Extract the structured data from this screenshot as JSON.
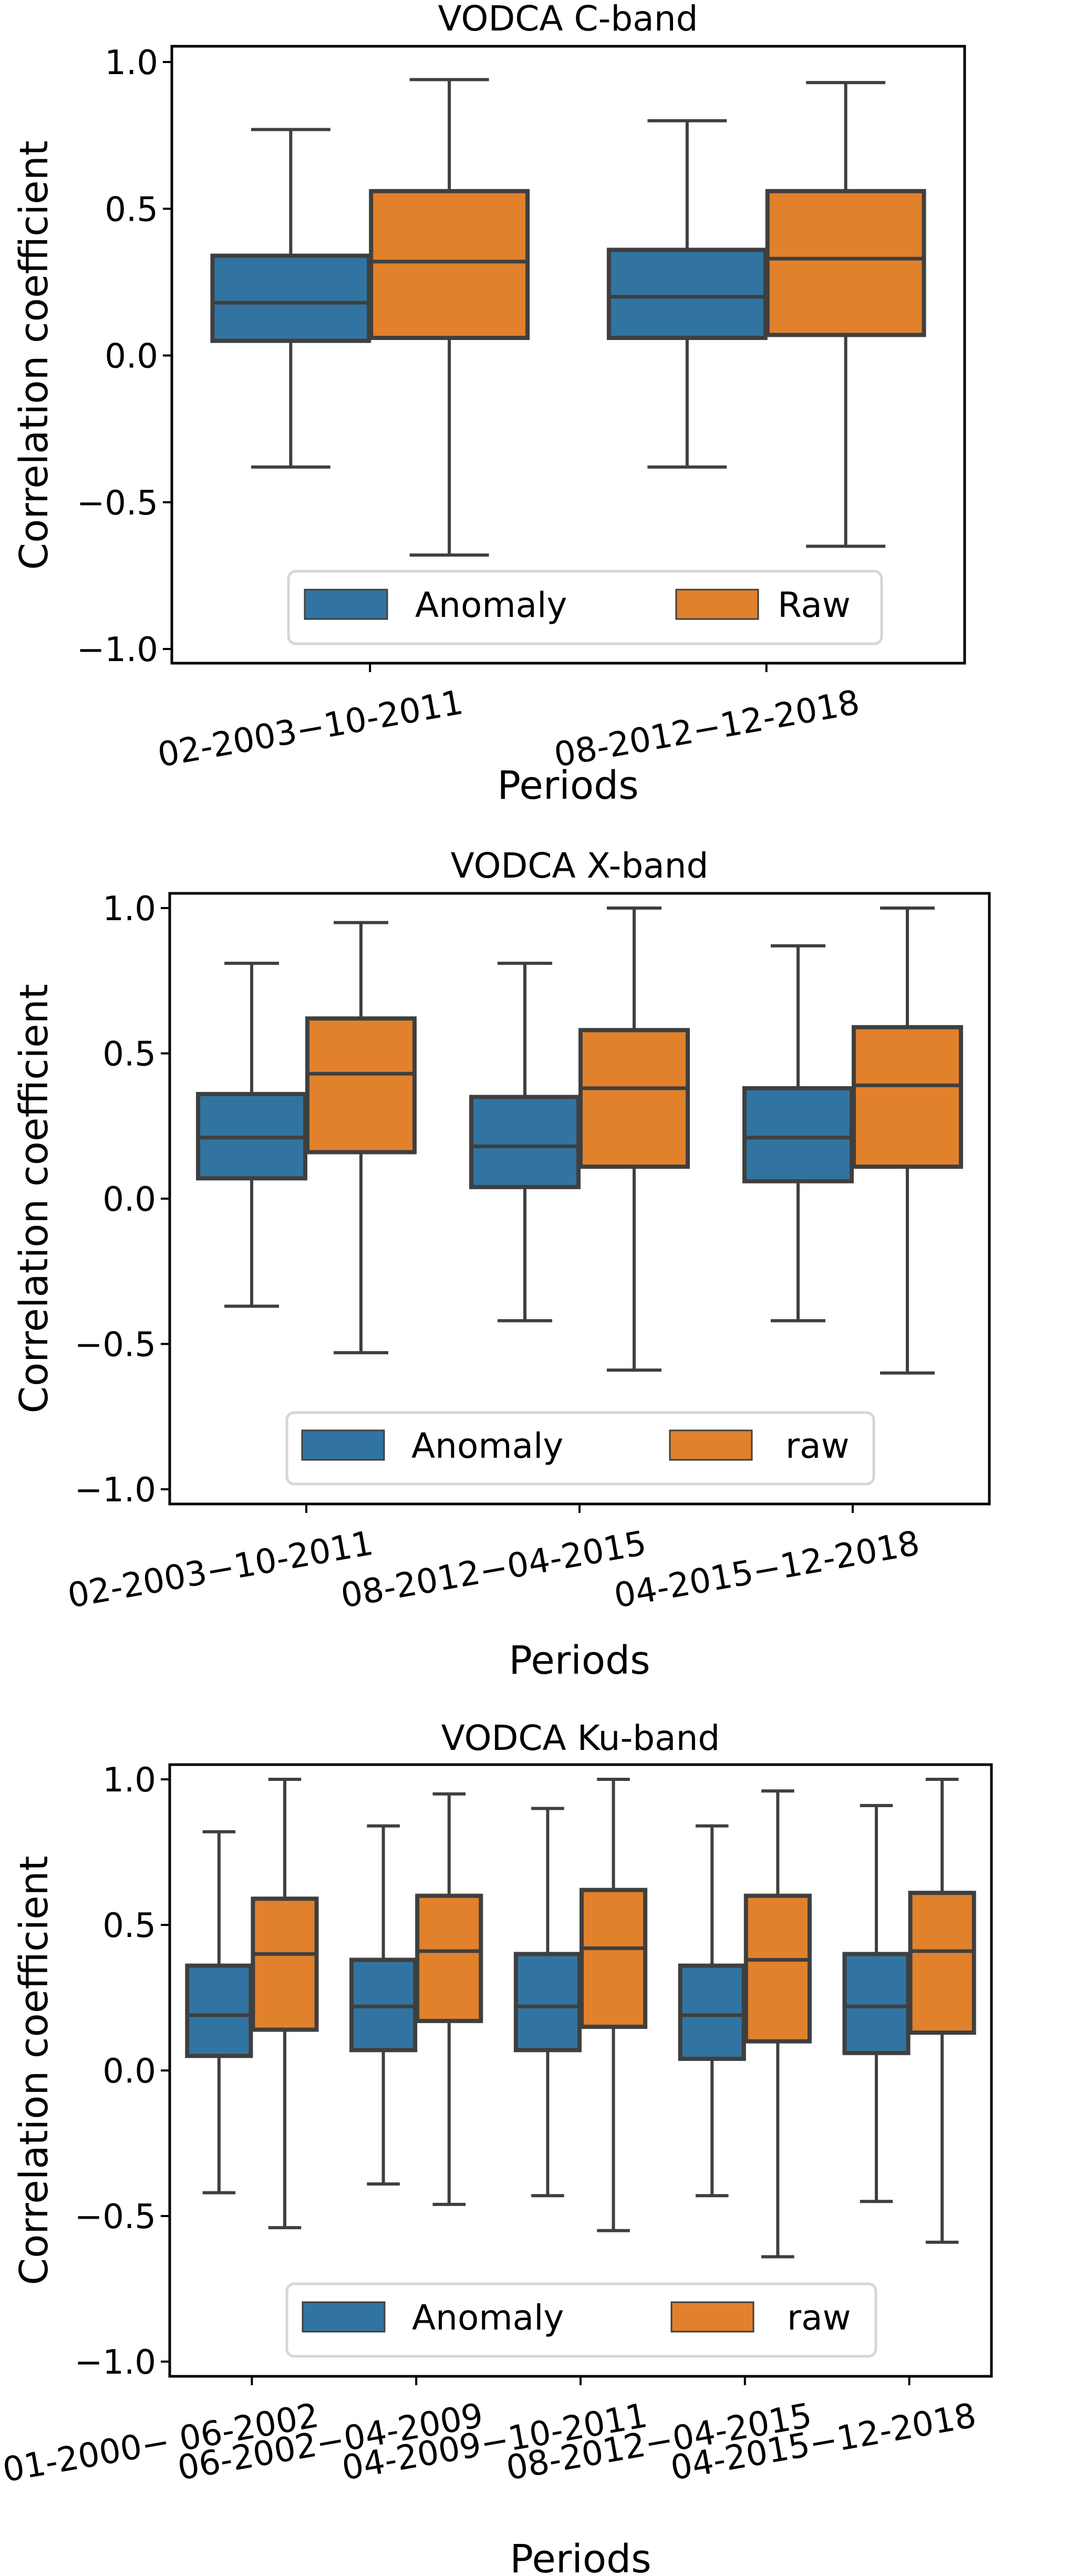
{
  "figure": {
    "ylabel": "Correlation coefficient",
    "xlabel": "Periods",
    "colors": {
      "anomaly": "#3274a1",
      "raw": "#e1812c",
      "edge": "#3f3f3f",
      "legend_border": "#d6d6d6"
    }
  },
  "chart_data": [
    {
      "type": "box",
      "title": "VODCA C-band",
      "xlabel": "Periods",
      "ylabel": "Correlation coefficient",
      "ylim": [
        -1.05,
        1.05
      ],
      "yticks": [
        1.0,
        0.5,
        0.0,
        -0.5,
        -1.0
      ],
      "ytick_labels": [
        "1.0",
        "0.5",
        "0.0",
        "−0.5",
        "−1.0"
      ],
      "grid": false,
      "legend": {
        "position": "bottom-center",
        "entries": [
          "Anomaly",
          "Raw"
        ]
      },
      "categories": [
        "02-2003−10-2011",
        "08-2012−12-2018"
      ],
      "series": [
        {
          "name": "Anomaly",
          "color": "#3274a1",
          "boxes": [
            {
              "whislo": -0.38,
              "q1": 0.05,
              "med": 0.18,
              "q3": 0.34,
              "whishi": 0.77
            },
            {
              "whislo": -0.38,
              "q1": 0.06,
              "med": 0.2,
              "q3": 0.36,
              "whishi": 0.8
            }
          ]
        },
        {
          "name": "Raw",
          "color": "#e1812c",
          "boxes": [
            {
              "whislo": -0.68,
              "q1": 0.06,
              "med": 0.32,
              "q3": 0.56,
              "whishi": 0.94
            },
            {
              "whislo": -0.65,
              "q1": 0.07,
              "med": 0.33,
              "q3": 0.56,
              "whishi": 0.93
            }
          ]
        }
      ]
    },
    {
      "type": "box",
      "title": "VODCA X-band",
      "xlabel": "Periods",
      "ylabel": "Correlation coefficient",
      "ylim": [
        -1.05,
        1.05
      ],
      "yticks": [
        1.0,
        0.5,
        0.0,
        -0.5,
        -1.0
      ],
      "ytick_labels": [
        "1.0",
        "0.5",
        "0.0",
        "−0.5",
        "−1.0"
      ],
      "grid": false,
      "legend": {
        "position": "bottom-center",
        "entries": [
          "Anomaly",
          "raw"
        ]
      },
      "categories": [
        "02-2003−10-2011",
        "08-2012−04-2015",
        "04-2015−12-2018"
      ],
      "series": [
        {
          "name": "Anomaly",
          "color": "#3274a1",
          "boxes": [
            {
              "whislo": -0.37,
              "q1": 0.07,
              "med": 0.21,
              "q3": 0.36,
              "whishi": 0.81
            },
            {
              "whislo": -0.42,
              "q1": 0.04,
              "med": 0.18,
              "q3": 0.35,
              "whishi": 0.81
            },
            {
              "whislo": -0.42,
              "q1": 0.06,
              "med": 0.21,
              "q3": 0.38,
              "whishi": 0.87
            }
          ]
        },
        {
          "name": "raw",
          "color": "#e1812c",
          "boxes": [
            {
              "whislo": -0.53,
              "q1": 0.16,
              "med": 0.43,
              "q3": 0.62,
              "whishi": 0.95
            },
            {
              "whislo": -0.59,
              "q1": 0.11,
              "med": 0.38,
              "q3": 0.58,
              "whishi": 1.0
            },
            {
              "whislo": -0.6,
              "q1": 0.11,
              "med": 0.39,
              "q3": 0.59,
              "whishi": 1.0
            }
          ]
        }
      ]
    },
    {
      "type": "box",
      "title": "VODCA Ku-band",
      "xlabel": "Periods",
      "ylabel": "Correlation coefficient",
      "ylim": [
        -1.05,
        1.05
      ],
      "yticks": [
        1.0,
        0.5,
        0.0,
        -0.5,
        -1.0
      ],
      "ytick_labels": [
        "1.0",
        "0.5",
        "0.0",
        "−0.5",
        "−1.0"
      ],
      "grid": false,
      "legend": {
        "position": "bottom-center",
        "entries": [
          "Anomaly",
          "raw"
        ]
      },
      "categories": [
        "01-2000− 06-2002",
        "06-2002−04-2009",
        "04-2009−10-2011",
        "08-2012−04-2015",
        "04-2015−12-2018"
      ],
      "series": [
        {
          "name": "Anomaly",
          "color": "#3274a1",
          "boxes": [
            {
              "whislo": -0.42,
              "q1": 0.05,
              "med": 0.19,
              "q3": 0.36,
              "whishi": 0.82
            },
            {
              "whislo": -0.39,
              "q1": 0.07,
              "med": 0.22,
              "q3": 0.38,
              "whishi": 0.84
            },
            {
              "whislo": -0.43,
              "q1": 0.07,
              "med": 0.22,
              "q3": 0.4,
              "whishi": 0.9
            },
            {
              "whislo": -0.43,
              "q1": 0.04,
              "med": 0.19,
              "q3": 0.36,
              "whishi": 0.84
            },
            {
              "whislo": -0.45,
              "q1": 0.06,
              "med": 0.22,
              "q3": 0.4,
              "whishi": 0.91
            }
          ]
        },
        {
          "name": "raw",
          "color": "#e1812c",
          "boxes": [
            {
              "whislo": -0.54,
              "q1": 0.14,
              "med": 0.4,
              "q3": 0.59,
              "whishi": 1.0
            },
            {
              "whislo": -0.46,
              "q1": 0.17,
              "med": 0.41,
              "q3": 0.6,
              "whishi": 0.95
            },
            {
              "whislo": -0.55,
              "q1": 0.15,
              "med": 0.42,
              "q3": 0.62,
              "whishi": 1.0
            },
            {
              "whislo": -0.64,
              "q1": 0.1,
              "med": 0.38,
              "q3": 0.6,
              "whishi": 0.96
            },
            {
              "whislo": -0.59,
              "q1": 0.13,
              "med": 0.41,
              "q3": 0.61,
              "whishi": 1.0
            }
          ]
        }
      ]
    }
  ]
}
